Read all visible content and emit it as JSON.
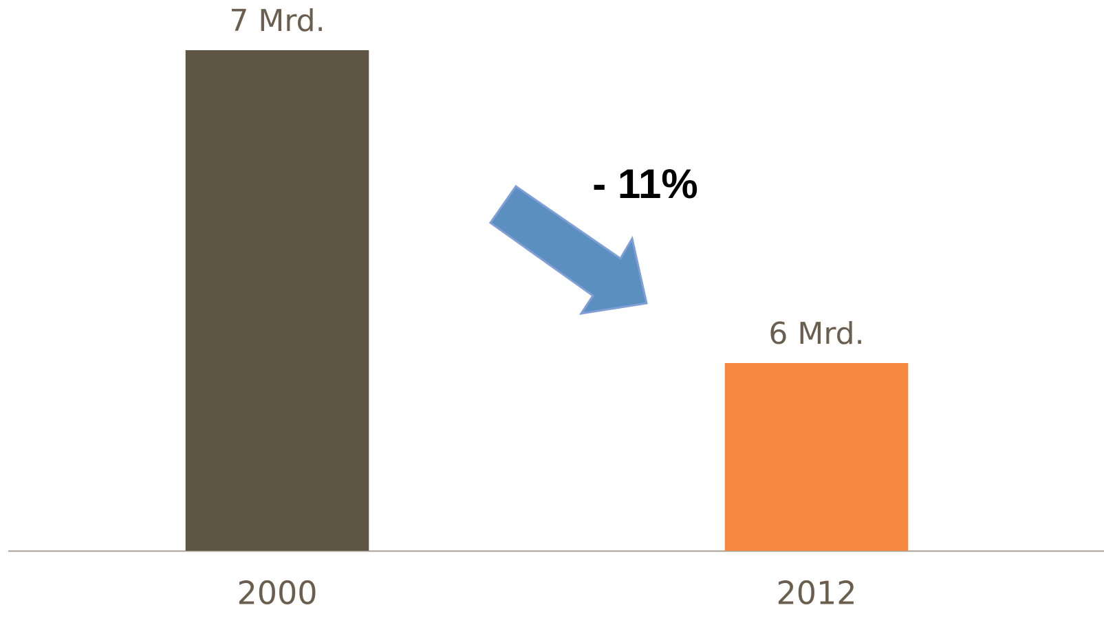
{
  "chart_data": {
    "type": "bar",
    "categories": [
      "2000",
      "2012"
    ],
    "values": [
      7,
      6
    ],
    "value_labels": [
      "7 Mrd.",
      "6 Mrd."
    ],
    "colors": [
      "#5e5444",
      "#f5883e"
    ],
    "ylim": [
      5.4,
      7
    ],
    "annotation": "- 11%"
  }
}
